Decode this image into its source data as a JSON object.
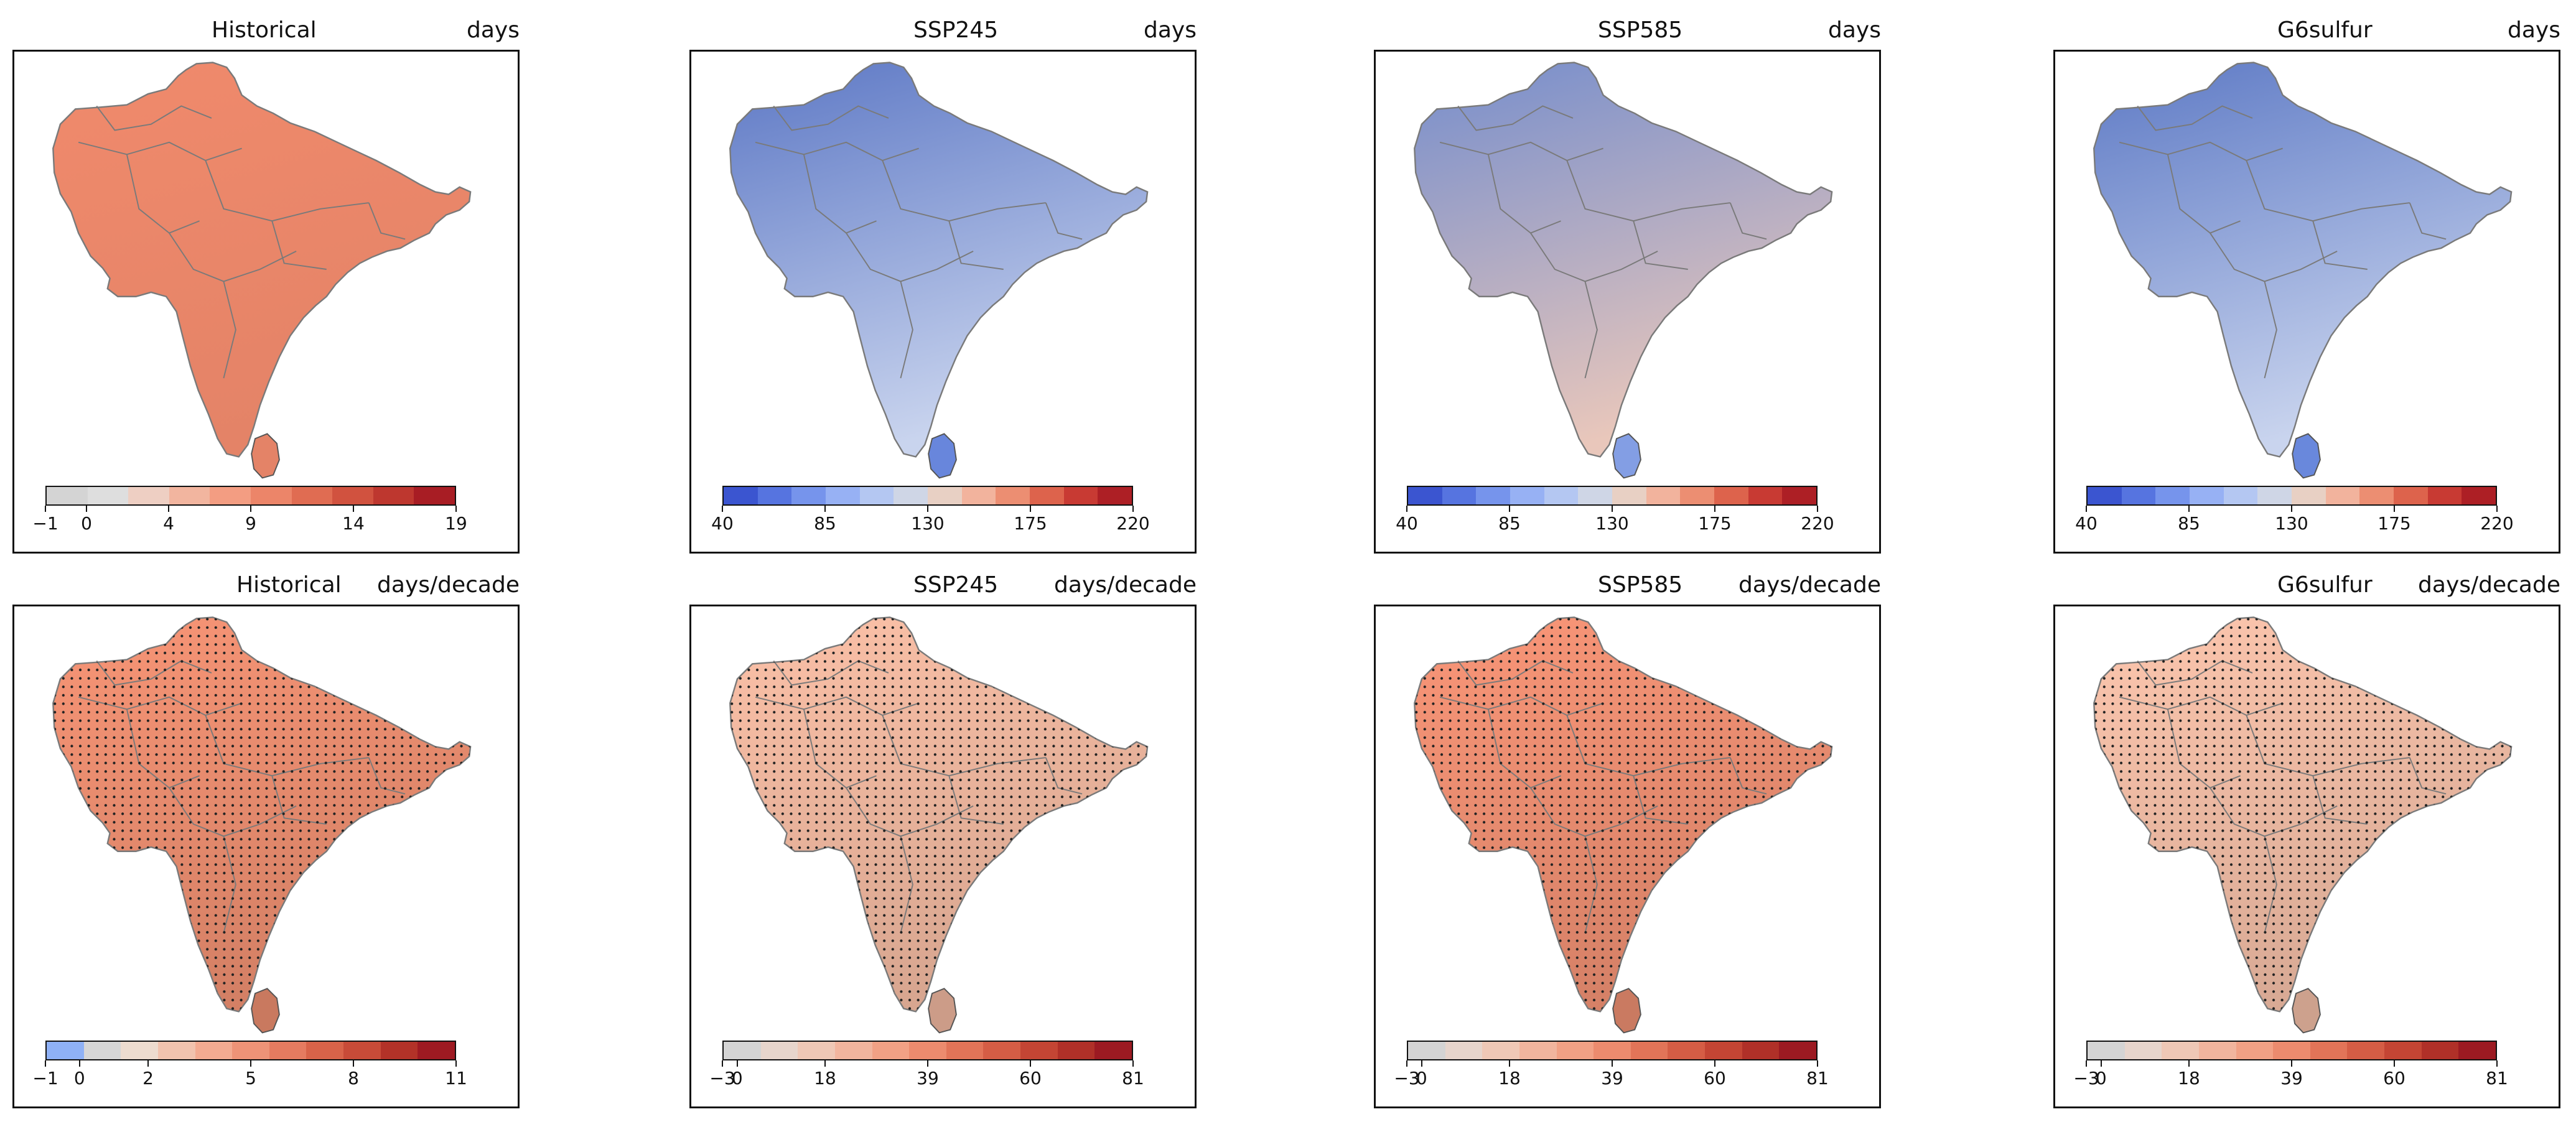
{
  "figure": {
    "rows": [
      {
        "units": "days",
        "panels": [
          {
            "title": "Historical",
            "units": "days",
            "colorbar": {
              "ticks": [
                "−1",
                "0",
                "4",
                "9",
                "14",
                "19"
              ],
              "colors": [
                "#d4d4d4",
                "#dedede",
                "#eecfc3",
                "#f2b59f",
                "#f39d82",
                "#ec8569",
                "#e06c52",
                "#d1523f",
                "#be372f",
                "#a81d24"
              ],
              "tick_fracs": [
                0,
                0.1,
                0.3,
                0.5,
                0.75,
                1.0
              ]
            },
            "fill": "#f08a6c"
          },
          {
            "title": "SSP245",
            "units": "days",
            "colorbar": {
              "ticks": [
                "40",
                "85",
                "130",
                "175",
                "220"
              ],
              "colors": [
                "#3b55d0",
                "#5674e0",
                "#7694ec",
                "#97b1f4",
                "#b4c7f2",
                "#cfd6e6",
                "#e8d0c4",
                "#f2b39d",
                "#ec8e72",
                "#dd634c",
                "#c83a33",
                "#ad1f25"
              ],
              "tick_fracs": [
                0,
                0.25,
                0.5,
                0.75,
                1.0
              ]
            },
            "fill": "#6d8de8"
          },
          {
            "title": "SSP585",
            "units": "days",
            "colorbar": {
              "ticks": [
                "40",
                "85",
                "130",
                "175",
                "220"
              ],
              "colors": [
                "#3b55d0",
                "#5674e0",
                "#7694ec",
                "#97b1f4",
                "#b4c7f2",
                "#cfd6e6",
                "#e8d0c4",
                "#f2b39d",
                "#ec8e72",
                "#dd634c",
                "#c83a33",
                "#ad1f25"
              ],
              "tick_fracs": [
                0,
                0.25,
                0.5,
                0.75,
                1.0
              ]
            },
            "fill": "#8aa6f0"
          },
          {
            "title": "G6sulfur",
            "units": "days",
            "colorbar": {
              "ticks": [
                "40",
                "85",
                "130",
                "175",
                "220"
              ],
              "colors": [
                "#3b55d0",
                "#5674e0",
                "#7694ec",
                "#97b1f4",
                "#b4c7f2",
                "#cfd6e6",
                "#e8d0c4",
                "#f2b39d",
                "#ec8e72",
                "#dd634c",
                "#c83a33",
                "#ad1f25"
              ],
              "tick_fracs": [
                0,
                0.25,
                0.5,
                0.75,
                1.0
              ]
            },
            "fill": "#6f8fe8"
          }
        ]
      },
      {
        "units": "days/decade",
        "panels": [
          {
            "title": "Historical",
            "units": "days/decade",
            "colorbar": {
              "ticks": [
                "−1",
                "0",
                "2",
                "5",
                "8",
                "11"
              ],
              "colors": [
                "#8fb1f6",
                "#d6d6d6",
                "#eddccf",
                "#f1c3ae",
                "#f3ab91",
                "#ee9377",
                "#e57b60",
                "#d86349",
                "#c84b38",
                "#b33228",
                "#9e1a22"
              ],
              "tick_fracs": [
                0,
                0.083,
                0.25,
                0.5,
                0.75,
                1.0
              ]
            },
            "fill": "#ec8e70",
            "stippled": true
          },
          {
            "title": "SSP245",
            "units": "days/decade",
            "colorbar": {
              "ticks": [
                "−3",
                "0",
                "18",
                "39",
                "60",
                "81"
              ],
              "colors": [
                "#d4d4d4",
                "#e7d5cc",
                "#efc8b6",
                "#f2b59e",
                "#f2a185",
                "#ec8b6e",
                "#e27458",
                "#d55d45",
                "#c44534",
                "#b03028",
                "#9c1a22"
              ],
              "tick_fracs": [
                0,
                0.036,
                0.25,
                0.5,
                0.75,
                1.0
              ]
            },
            "fill": "#f0b8a0",
            "stippled": true
          },
          {
            "title": "SSP585",
            "units": "days/decade",
            "colorbar": {
              "ticks": [
                "−3",
                "0",
                "18",
                "39",
                "60",
                "81"
              ],
              "colors": [
                "#d4d4d4",
                "#e7d5cc",
                "#efc8b6",
                "#f2b59e",
                "#f2a185",
                "#ec8b6e",
                "#e27458",
                "#d55d45",
                "#c44534",
                "#b03028",
                "#9c1a22"
              ],
              "tick_fracs": [
                0,
                0.036,
                0.25,
                0.5,
                0.75,
                1.0
              ]
            },
            "fill": "#ee8f72",
            "stippled": true
          },
          {
            "title": "G6sulfur",
            "units": "days/decade",
            "colorbar": {
              "ticks": [
                "−3",
                "0",
                "18",
                "39",
                "60",
                "81"
              ],
              "colors": [
                "#d4d4d4",
                "#e7d5cc",
                "#efc8b6",
                "#f2b59e",
                "#f2a185",
                "#ec8b6e",
                "#e27458",
                "#d55d45",
                "#c44534",
                "#b03028",
                "#9c1a22"
              ],
              "tick_fracs": [
                0,
                0.036,
                0.25,
                0.5,
                0.75,
                1.0
              ]
            },
            "fill": "#f1bda6",
            "stippled": true
          }
        ]
      }
    ]
  }
}
